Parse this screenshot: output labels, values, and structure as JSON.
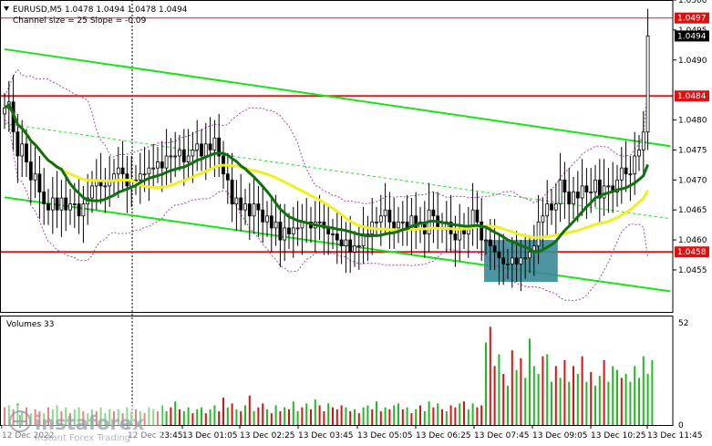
{
  "header": {
    "symbol_line": "EURUSD,M5  1.0478 1.0494 1.0478 1.0494",
    "channel_line": "Channel size = 25 Slope = -0.09"
  },
  "volumes_label": "Volumes 33",
  "watermark": {
    "brand": "instaforex",
    "tagline": "Instant Forex Trading"
  },
  "colors": {
    "candle": "#000000",
    "channel": "#18e418",
    "ma_fast": "#107010",
    "ma_slow": "#f0f020",
    "bands": "#b040c0",
    "level": "#d02020",
    "box": "#3a8a96",
    "vol_green": "#22bb22",
    "vol_red": "#dd1111",
    "label_bg_red": "#e01010",
    "label_bg_black": "#000000"
  },
  "chart_data": [
    {
      "type": "candlestick",
      "ylim": [
        1.0448,
        1.05
      ],
      "y_ticks": [
        "1.0500",
        "1.0495",
        "1.0490",
        "1.0480",
        "1.0475",
        "1.0470",
        "1.0465",
        "1.0460",
        "1.0455"
      ],
      "price_labels": [
        {
          "text": "1.0497",
          "value": 1.0497,
          "style": "red"
        },
        {
          "text": "1.0494",
          "value": 1.0494,
          "style": "black"
        },
        {
          "text": "1.0484",
          "value": 1.0484,
          "style": "red"
        },
        {
          "text": "1.0458",
          "value": 1.0458,
          "style": "red"
        }
      ],
      "horizontal_levels": [
        1.0497,
        1.0484,
        1.0458
      ],
      "x_labels": [
        "12 Dec 2022",
        "12 Dec 23:45",
        "13 Dec 01:05",
        "13 Dec 02:25",
        "13 Dec 03:45",
        "13 Dec 05:05",
        "13 Dec 06:25",
        "13 Dec 07:45",
        "13 Dec 09:05",
        "13 Dec 10:25",
        "13 Dec 11:45"
      ],
      "channel": {
        "upper": [
          [
            0,
            1.04918
          ],
          [
            148,
            1.04761
          ]
        ],
        "lower": [
          [
            0,
            1.04671
          ],
          [
            148,
            1.04519
          ]
        ],
        "mid": [
          [
            0,
            1.04794
          ],
          [
            148,
            1.0464
          ]
        ]
      },
      "highlight_box": {
        "from_bar": 110,
        "to_bar": 126,
        "low": 1.0453,
        "high": 1.046
      },
      "closes": [
        1.0482,
        1.0483,
        1.0478,
        1.0474,
        1.0476,
        1.0473,
        1.047,
        1.0471,
        1.0468,
        1.0466,
        1.0465,
        1.0467,
        1.0465,
        1.0467,
        1.0465,
        1.0466,
        1.0466,
        1.0464,
        1.0466,
        1.0467,
        1.0469,
        1.047,
        1.0469,
        1.0469,
        1.047,
        1.0471,
        1.0472,
        1.0471,
        1.0469,
        1.047,
        1.047,
        1.0471,
        1.0471,
        1.0472,
        1.0472,
        1.0473,
        1.0472,
        1.0474,
        1.0474,
        1.0474,
        1.0475,
        1.0473,
        1.0474,
        1.0475,
        1.0476,
        1.0474,
        1.0476,
        1.0475,
        1.0477,
        1.0474,
        1.0471,
        1.047,
        1.0466,
        1.0467,
        1.0465,
        1.0466,
        1.0464,
        1.0466,
        1.0465,
        1.0463,
        1.0464,
        1.0462,
        1.0463,
        1.046,
        1.0462,
        1.0461,
        1.0462,
        1.0462,
        1.0463,
        1.0463,
        1.0462,
        1.0463,
        1.0463,
        1.0462,
        1.0461,
        1.0461,
        1.046,
        1.0459,
        1.046,
        1.0458,
        1.0459,
        1.0459,
        1.0461,
        1.0461,
        1.0463,
        1.0463,
        1.0464,
        1.0465,
        1.0463,
        1.0462,
        1.0463,
        1.0463,
        1.0462,
        1.0464,
        1.0462,
        1.0463,
        1.0461,
        1.0465,
        1.0464,
        1.0462,
        1.0462,
        1.0463,
        1.0461,
        1.046,
        1.0462,
        1.0461,
        1.0462,
        1.0465,
        1.0463,
        1.046,
        1.046,
        1.0459,
        1.0458,
        1.0457,
        1.0456,
        1.0456,
        1.0457,
        1.0456,
        1.0457,
        1.0457,
        1.0458,
        1.0459,
        1.0463,
        1.0464,
        1.0466,
        1.0465,
        1.0466,
        1.047,
        1.0468,
        1.0466,
        1.0468,
        1.0467,
        1.0469,
        1.0468,
        1.0468,
        1.047,
        1.0467,
        1.0469,
        1.0469,
        1.0468,
        1.047,
        1.0472,
        1.0471,
        1.0471,
        1.0474,
        1.0475,
        1.0478,
        1.0494
      ]
    },
    {
      "type": "bar",
      "ylim": [
        0,
        52
      ],
      "y_ticks": [
        "52",
        "0"
      ],
      "values": [
        9,
        10,
        8,
        11,
        7,
        9,
        6,
        8,
        7,
        6,
        9,
        8,
        10,
        7,
        9,
        6,
        8,
        9,
        7,
        6,
        8,
        7,
        9,
        6,
        8,
        7,
        8,
        6,
        9,
        7,
        8,
        7,
        6,
        9,
        8,
        7,
        10,
        7,
        9,
        12,
        8,
        7,
        9,
        6,
        8,
        9,
        6,
        8,
        10,
        7,
        14,
        9,
        11,
        8,
        7,
        10,
        15,
        7,
        9,
        11,
        8,
        6,
        10,
        7,
        9,
        8,
        12,
        7,
        9,
        11,
        8,
        13,
        10,
        7,
        11,
        9,
        8,
        10,
        9,
        7,
        8,
        6,
        9,
        10,
        8,
        12,
        7,
        9,
        8,
        10,
        11,
        8,
        9,
        6,
        8,
        10,
        7,
        12,
        9,
        11,
        8,
        7,
        10,
        9,
        11,
        12,
        8,
        11,
        9,
        10,
        42,
        50,
        30,
        36,
        26,
        20,
        38,
        28,
        34,
        24,
        44,
        30,
        26,
        35,
        36,
        22,
        30,
        24,
        33,
        22,
        30,
        26,
        35,
        22,
        27,
        20,
        25,
        33,
        22,
        30,
        28,
        24,
        26,
        22,
        30,
        24,
        35,
        26,
        33
      ],
      "colors_up": [
        0,
        1,
        0,
        1,
        1,
        0,
        1,
        0,
        0,
        1,
        0,
        1,
        1,
        0,
        1,
        0,
        1,
        1,
        0,
        1,
        1,
        0,
        1,
        1,
        1,
        0,
        1,
        0,
        1,
        1,
        0,
        1,
        0,
        1,
        1,
        0,
        1,
        1,
        0,
        1,
        0,
        1,
        1,
        0,
        1,
        1,
        0,
        1,
        1,
        0,
        0,
        1,
        0,
        1,
        0,
        1,
        0,
        1,
        0,
        0,
        1,
        0,
        1,
        0,
        1,
        0,
        1,
        1,
        0,
        1,
        0,
        1,
        0,
        0,
        1,
        0,
        0,
        0,
        1,
        0,
        1,
        0,
        1,
        1,
        0,
        1,
        0,
        1,
        0,
        1,
        1,
        0,
        1,
        0,
        1,
        0,
        1,
        1,
        0,
        1,
        0,
        1,
        0,
        0,
        1,
        0,
        1,
        1,
        0,
        0,
        1,
        0,
        0,
        1,
        0,
        1,
        0,
        1,
        0,
        1,
        1,
        1,
        1,
        0,
        1,
        1,
        0,
        1,
        0,
        1,
        0,
        1,
        0,
        1,
        0,
        1,
        1,
        0,
        1,
        1,
        1,
        0,
        1,
        1,
        1,
        1,
        1,
        1,
        1
      ]
    }
  ]
}
